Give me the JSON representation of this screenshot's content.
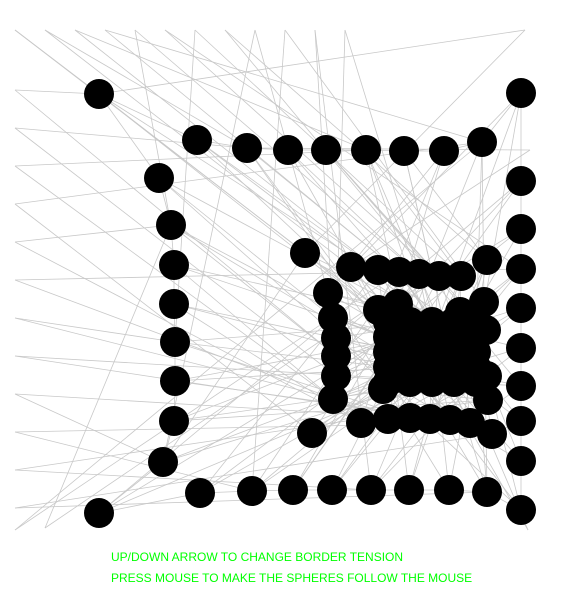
{
  "canvas": {
    "background_color": "#ffffff",
    "sphere_color": "#000000",
    "link_color": "#c8c8c8",
    "text_color": "#00ff00"
  },
  "instructions": {
    "line1": "UP/DOWN ARROW TO CHANGE BORDER TENSION",
    "line2": "PRESS MOUSE TO MAKE THE SPHERES FOLLOW THE MOUSE"
  }
}
